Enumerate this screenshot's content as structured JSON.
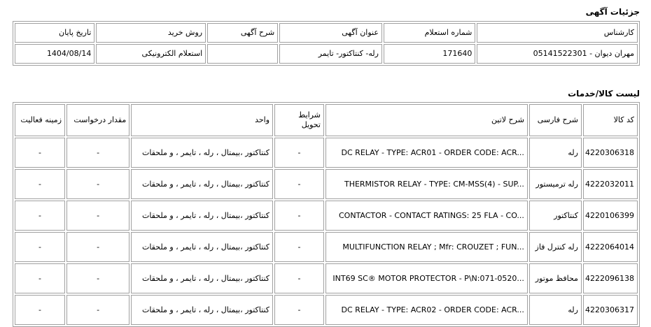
{
  "details": {
    "title": "جزئیات آگهی",
    "headers": [
      "کارشناس",
      "شماره استعلام",
      "عنوان آگهی",
      "شرح آگهی",
      "روش خرید",
      "تاریخ پایان"
    ],
    "values": [
      "مهران دیوان - 05141522301",
      "171640",
      "رله- کنتاکتور- تایمر",
      "",
      "استعلام الکترونیکی",
      "1404/08/14"
    ]
  },
  "goods": {
    "title": "لیست کالا/خدمات",
    "headers": [
      "کد کالا",
      "شرح فارسی",
      "شرح لاتین",
      "شرایط تحویل",
      "واحد",
      "مقدار درخواست",
      "زمینه فعالیت"
    ],
    "rows": [
      [
        "4220306318",
        "رله",
        "DC RELAY - TYPE: ACR01 - ORDER CODE: ACR...",
        "-",
        "کنتاکتور ،بیمتال ، رله ، تایمر ، و ملحقات",
        "-",
        "-"
      ],
      [
        "4222032011",
        "رله ترمیستور",
        "THERMISTOR RELAY - TYPE: CM-MSS(4) - SUP...",
        "-",
        "کنتاکتور ،بیمتال ، رله ، تایمر ، و ملحقات",
        "-",
        "-"
      ],
      [
        "4220106399",
        "کنتاکتور",
        "CONTACTOR - CONTACT RATINGS: 25 FLA - CO...",
        "-",
        "کنتاکتور ،بیمتال ، رله ، تایمر ، و ملحقات",
        "-",
        "-"
      ],
      [
        "4222064014",
        "رله کنترل فاز",
        "MULTIFUNCTION RELAY ; Mfr: CROUZET ; FUN...",
        "-",
        "کنتاکتور ،بیمتال ، رله ، تایمر ، و ملحقات",
        "-",
        "-"
      ],
      [
        "4222096138",
        "محافظ موتور",
        "INT69 SC® MOTOR PROTECTOR - P\\N:071-0520...",
        "-",
        "کنتاکتور ،بیمتال ، رله ، تایمر ، و ملحقات",
        "-",
        "-"
      ],
      [
        "4220306317",
        "رله",
        "DC RELAY - TYPE: ACR02 - ORDER CODE: ACR...",
        "-",
        "کنتاکتور ،بیمتال ، رله ، تایمر ، و ملحقات",
        "-",
        "-"
      ]
    ]
  }
}
